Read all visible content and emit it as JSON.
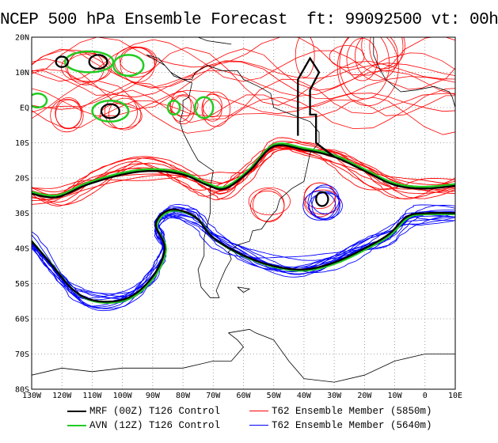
{
  "title": "NCEP 500 hPa Ensemble Forecast  ft: 99092500 vt: 00h",
  "map": {
    "lat_labels": [
      "20N",
      "10N",
      "EQ",
      "10S",
      "20S",
      "30S",
      "40S",
      "50S",
      "60S",
      "70S",
      "80S"
    ],
    "lon_labels": [
      "130W",
      "120W",
      "110W",
      "100W",
      "90W",
      "80W",
      "70W",
      "60W",
      "50W",
      "40W",
      "30W",
      "20W",
      "10W",
      "0",
      "10E"
    ],
    "lon_range": [
      -130,
      10
    ],
    "lat_range": [
      -80,
      20
    ],
    "grid": "dotted"
  },
  "legend": [
    {
      "text": "MRF (00Z) T126 Control",
      "color": "#000000",
      "width": 2.5
    },
    {
      "text": "AVN (12Z) T126 Control",
      "color": "#22cc22",
      "width": 2.5
    },
    {
      "text": "T62 Ensemble Member (5850m)",
      "color": "#ff0000",
      "width": 1
    },
    {
      "text": "T62 Ensemble Member (5640m)",
      "color": "#0000ff",
      "width": 1
    }
  ],
  "colors": {
    "red": "#ff0000",
    "blue": "#0000ff",
    "green": "#22cc22",
    "black": "#000000"
  }
}
